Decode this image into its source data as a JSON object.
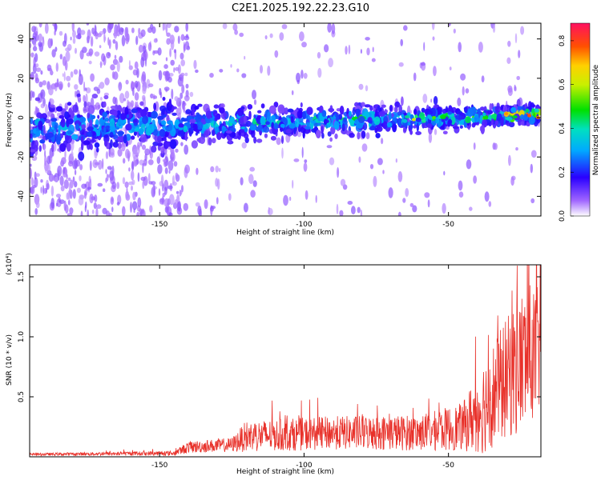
{
  "title": "C2E1.2025.192.22.23.G10",
  "chart_data": [
    {
      "type": "heatmap",
      "xlabel": "Height of straight line (km)",
      "ylabel": "Frequency (Hz)",
      "xlim": [
        -195,
        -18
      ],
      "ylim": [
        -50,
        48
      ],
      "xticks": [
        -150,
        -100,
        -50
      ],
      "yticks": [
        -40,
        -20,
        0,
        20,
        40
      ],
      "colorbar": {
        "label": "Normalized spectral amplitude",
        "range": [
          0,
          0.88
        ],
        "ticks": [
          0,
          0.2,
          0.4,
          0.6,
          0.8
        ],
        "tick_labels": [
          "0.0",
          "0.2",
          "0.4",
          "0.6",
          "0.8"
        ]
      },
      "trend": {
        "x": [
          -195,
          -150,
          -100,
          -50,
          -18
        ],
        "center_frequency": [
          -6,
          -4,
          -2,
          0,
          2
        ],
        "peak_amplitude": [
          0.38,
          0.42,
          0.45,
          0.55,
          0.85
        ]
      }
    },
    {
      "type": "line",
      "xlabel": "Height of straight line (km)",
      "ylabel": "SNR (10 * v/v)",
      "scale_label": "(x10⁴)",
      "xlim": [
        -195,
        -18
      ],
      "ylim": [
        0,
        1.6
      ],
      "xticks": [
        -150,
        -100,
        -50
      ],
      "yticks": [
        0.5,
        1.0,
        1.5
      ],
      "ytick_labels": [
        "0.5",
        "1.0",
        "1.5"
      ],
      "color": "#e8312a",
      "envelope": {
        "x": [
          -195,
          -145,
          -140,
          -125,
          -120,
          -90,
          -60,
          -45,
          -38,
          -30,
          -25,
          -22,
          -18
        ],
        "mean": [
          0.02,
          0.03,
          0.08,
          0.1,
          0.17,
          0.2,
          0.2,
          0.25,
          0.42,
          0.65,
          0.78,
          0.85,
          0.9
        ],
        "spread": [
          0.01,
          0.02,
          0.05,
          0.06,
          0.13,
          0.14,
          0.15,
          0.2,
          0.4,
          0.5,
          0.6,
          0.6,
          0.5
        ]
      }
    }
  ]
}
